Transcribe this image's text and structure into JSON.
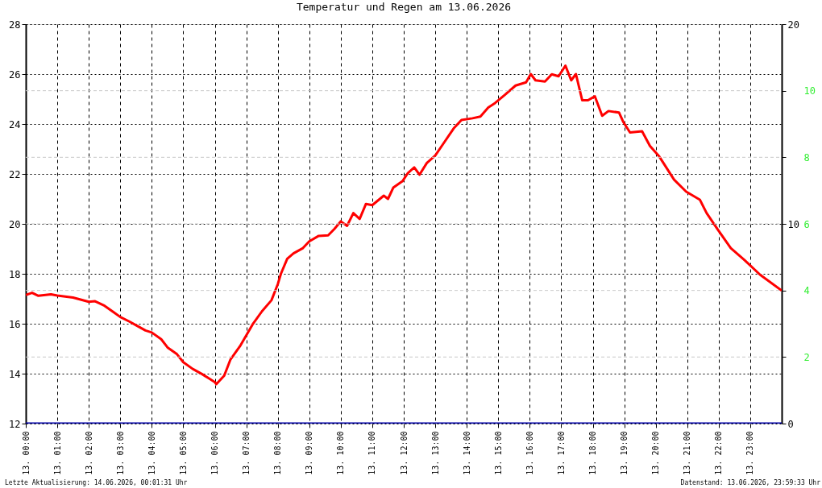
{
  "chart_data": {
    "type": "line",
    "title": "Temperatur und Regen am 13.06.2026",
    "xlim": [
      "2026-06-13T00:00",
      "2026-06-14T00:00"
    ],
    "xticks": [
      {
        "value": "2026-06-13T00:00",
        "label": "13. 00:00"
      },
      {
        "value": "2026-06-13T01:00",
        "label": "13. 01:00"
      },
      {
        "value": "2026-06-13T02:00",
        "label": "13. 02:00"
      },
      {
        "value": "2026-06-13T03:00",
        "label": "13. 03:00"
      },
      {
        "value": "2026-06-13T04:00",
        "label": "13. 04:00"
      },
      {
        "value": "2026-06-13T05:00",
        "label": "13. 05:00"
      },
      {
        "value": "2026-06-13T06:00",
        "label": "13. 06:00"
      },
      {
        "value": "2026-06-13T07:00",
        "label": "13. 07:00"
      },
      {
        "value": "2026-06-13T08:00",
        "label": "13. 08:00"
      },
      {
        "value": "2026-06-13T09:00",
        "label": "13. 09:00"
      },
      {
        "value": "2026-06-13T10:00",
        "label": "13. 10:00"
      },
      {
        "value": "2026-06-13T11:00",
        "label": "13. 11:00"
      },
      {
        "value": "2026-06-13T12:00",
        "label": "13. 12:00"
      },
      {
        "value": "2026-06-13T13:00",
        "label": "13. 13:00"
      },
      {
        "value": "2026-06-13T14:00",
        "label": "13. 14:00"
      },
      {
        "value": "2026-06-13T15:00",
        "label": "13. 15:00"
      },
      {
        "value": "2026-06-13T16:00",
        "label": "13. 16:00"
      },
      {
        "value": "2026-06-13T17:00",
        "label": "13. 17:00"
      },
      {
        "value": "2026-06-13T18:00",
        "label": "13. 18:00"
      },
      {
        "value": "2026-06-13T19:00",
        "label": "13. 19:00"
      },
      {
        "value": "2026-06-13T20:00",
        "label": "13. 20:00"
      },
      {
        "value": "2026-06-13T21:00",
        "label": "13. 21:00"
      },
      {
        "value": "2026-06-13T22:00",
        "label": "13. 22:00"
      },
      {
        "value": "2026-06-13T23:00",
        "label": "13. 23:00"
      }
    ],
    "ylim": [
      12,
      28
    ],
    "yticks": [
      12,
      14,
      16,
      18,
      20,
      22,
      24,
      26,
      28
    ],
    "y2lim": [
      0,
      20
    ],
    "y2ticks": [
      0,
      10,
      20
    ],
    "y3lim": [
      0,
      12
    ],
    "y3ticks": [
      2,
      4,
      6,
      8,
      10
    ],
    "grid": true,
    "legend": false,
    "marker": "none",
    "line_style": "solid",
    "series": [
      {
        "color": "#ff0000",
        "x": [
          "2026-06-13T00:00",
          "2026-06-13T00:12",
          "2026-06-13T00:24",
          "2026-06-13T00:48",
          "2026-06-13T01:00",
          "2026-06-13T01:30",
          "2026-06-13T02:00",
          "2026-06-13T02:12",
          "2026-06-13T02:30",
          "2026-06-13T02:48",
          "2026-06-13T03:00",
          "2026-06-13T03:18",
          "2026-06-13T03:30",
          "2026-06-13T03:48",
          "2026-06-13T04:00",
          "2026-06-13T04:18",
          "2026-06-13T04:30",
          "2026-06-13T04:48",
          "2026-06-13T05:00",
          "2026-06-13T05:18",
          "2026-06-13T05:36",
          "2026-06-13T05:48",
          "2026-06-13T06:00",
          "2026-06-13T06:03",
          "2026-06-13T06:18",
          "2026-06-13T06:30",
          "2026-06-13T06:48",
          "2026-06-13T07:00",
          "2026-06-13T07:12",
          "2026-06-13T07:30",
          "2026-06-13T07:48",
          "2026-06-13T08:00",
          "2026-06-13T08:06",
          "2026-06-13T08:18",
          "2026-06-13T08:30",
          "2026-06-13T08:48",
          "2026-06-13T09:00",
          "2026-06-13T09:18",
          "2026-06-13T09:36",
          "2026-06-13T09:48",
          "2026-06-13T10:00",
          "2026-06-13T10:12",
          "2026-06-13T10:24",
          "2026-06-13T10:36",
          "2026-06-13T10:48",
          "2026-06-13T11:00",
          "2026-06-13T11:22",
          "2026-06-13T11:30",
          "2026-06-13T11:40",
          "2026-06-13T11:58",
          "2026-06-13T12:08",
          "2026-06-13T12:20",
          "2026-06-13T12:30",
          "2026-06-13T12:44",
          "2026-06-13T13:00",
          "2026-06-13T13:14",
          "2026-06-13T13:35",
          "2026-06-13T13:50",
          "2026-06-13T14:11",
          "2026-06-13T14:26",
          "2026-06-13T14:41",
          "2026-06-13T14:54",
          "2026-06-13T15:12",
          "2026-06-13T15:33",
          "2026-06-13T15:53",
          "2026-06-13T16:02",
          "2026-06-13T16:11",
          "2026-06-13T16:29",
          "2026-06-13T16:42",
          "2026-06-13T16:55",
          "2026-06-13T17:08",
          "2026-06-13T17:19",
          "2026-06-13T17:28",
          "2026-06-13T17:40",
          "2026-06-13T17:51",
          "2026-06-13T18:04",
          "2026-06-13T18:18",
          "2026-06-13T18:30",
          "2026-06-13T18:50",
          "2026-06-13T18:58",
          "2026-06-13T19:11",
          "2026-06-13T19:34",
          "2026-06-13T19:49",
          "2026-06-13T20:07",
          "2026-06-13T20:35",
          "2026-06-13T20:58",
          "2026-06-13T21:24",
          "2026-06-13T21:37",
          "2026-06-13T21:58",
          "2026-06-13T22:23",
          "2026-06-13T22:49",
          "2026-06-13T23:19",
          "2026-06-14T00:00"
        ],
        "values": [
          17.15,
          17.24,
          17.12,
          17.18,
          17.13,
          17.05,
          16.88,
          16.9,
          16.72,
          16.45,
          16.27,
          16.08,
          15.94,
          15.73,
          15.65,
          15.38,
          15.05,
          14.78,
          14.46,
          14.19,
          13.98,
          13.82,
          13.66,
          13.58,
          13.92,
          14.57,
          15.1,
          15.53,
          15.97,
          16.5,
          16.94,
          17.58,
          18.0,
          18.6,
          18.82,
          19.03,
          19.3,
          19.52,
          19.54,
          19.8,
          20.1,
          19.92,
          20.43,
          20.2,
          20.8,
          20.75,
          21.13,
          21.0,
          21.45,
          21.72,
          22.04,
          22.26,
          21.97,
          22.44,
          22.74,
          23.17,
          23.82,
          24.16,
          24.23,
          24.3,
          24.66,
          24.84,
          25.16,
          25.54,
          25.67,
          26.0,
          25.75,
          25.7,
          25.99,
          25.91,
          26.34,
          25.75,
          26.0,
          24.95,
          24.95,
          25.11,
          24.33,
          24.52,
          24.46,
          24.09,
          23.66,
          23.71,
          23.12,
          22.69,
          21.77,
          21.29,
          20.97,
          20.43,
          19.78,
          19.03,
          18.55,
          17.96,
          17.33
        ]
      },
      {
        "color": "#0000aa",
        "axis": "y2",
        "x": [
          "2026-06-13T00:00",
          "2026-06-14T00:00"
        ],
        "values": [
          0,
          0
        ]
      }
    ],
    "annotations": [
      "Letzte Aktualisierung: 14.06.2026, 00:01:31 Uhr",
      "Datenstand: 13.06.2026, 23:59:33 Uhr"
    ]
  }
}
